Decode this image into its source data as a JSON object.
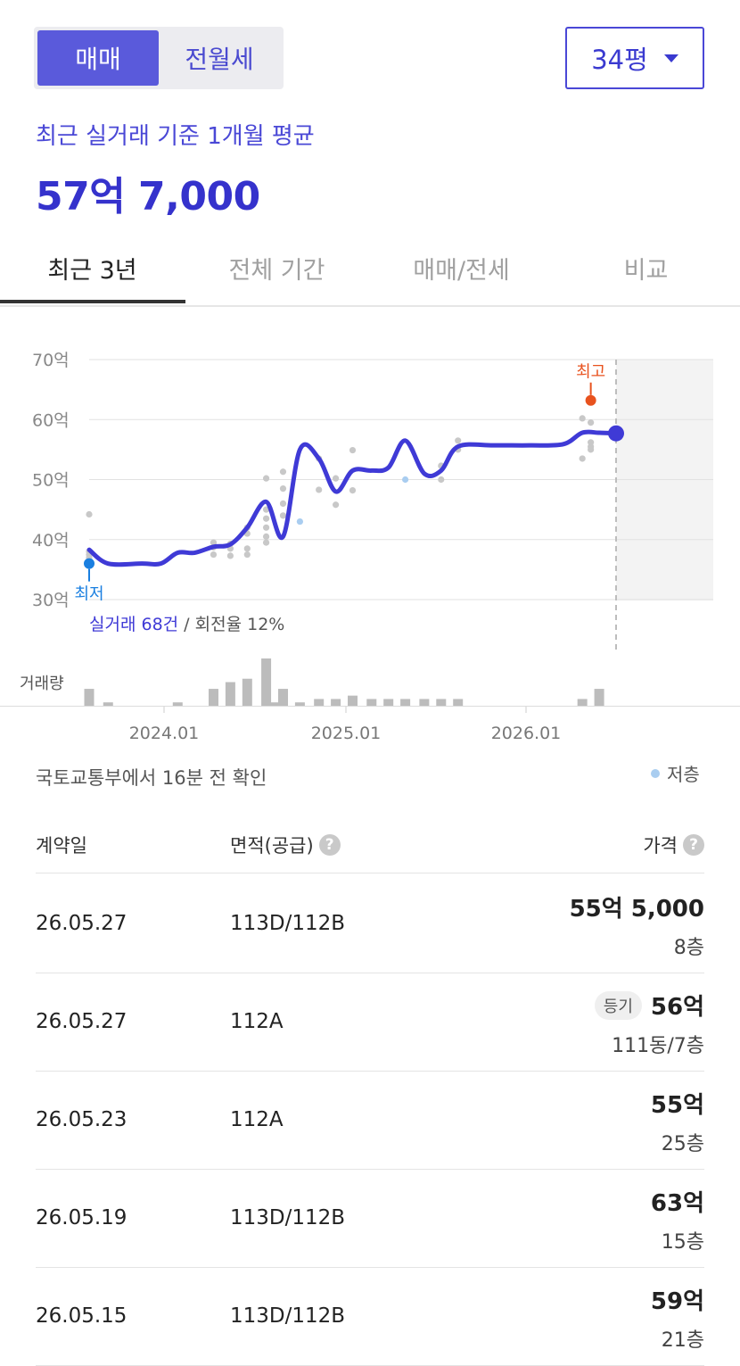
{
  "tradeTabs": [
    "매매",
    "전월세"
  ],
  "sizeSelect": "34평",
  "avgLabel": "최근 실거래 기준 1개월 평균",
  "avgValue": "57억 7,000",
  "periodTabs": [
    "최근 3년",
    "전체 기간",
    "매매/전세",
    "비교"
  ],
  "chart_data": {
    "type": "line",
    "yTickLabels": [
      "70억",
      "60억",
      "50억",
      "40억",
      "30억"
    ],
    "ylim": [
      30,
      70
    ],
    "xTickLabels": [
      "2024.01",
      "2025.01",
      "2026.01"
    ],
    "trend": [
      {
        "x": 2023.58,
        "y": 38.3
      },
      {
        "x": 2023.67,
        "y": 36.0
      },
      {
        "x": 2023.83,
        "y": 36.0
      },
      {
        "x": 2023.92,
        "y": 36.0
      },
      {
        "x": 2024.0,
        "y": 37.8
      },
      {
        "x": 2024.08,
        "y": 37.8
      },
      {
        "x": 2024.17,
        "y": 38.8
      },
      {
        "x": 2024.25,
        "y": 39.2
      },
      {
        "x": 2024.33,
        "y": 42.0
      },
      {
        "x": 2024.42,
        "y": 46.3
      },
      {
        "x": 2024.5,
        "y": 40.5
      },
      {
        "x": 2024.58,
        "y": 55.0
      },
      {
        "x": 2024.67,
        "y": 53.5
      },
      {
        "x": 2024.75,
        "y": 48.0
      },
      {
        "x": 2024.83,
        "y": 51.5
      },
      {
        "x": 2024.92,
        "y": 51.5
      },
      {
        "x": 2025.0,
        "y": 52.0
      },
      {
        "x": 2025.08,
        "y": 56.5
      },
      {
        "x": 2025.17,
        "y": 51.0
      },
      {
        "x": 2025.25,
        "y": 51.5
      },
      {
        "x": 2025.33,
        "y": 55.5
      },
      {
        "x": 2025.5,
        "y": 55.7
      },
      {
        "x": 2025.67,
        "y": 55.7
      },
      {
        "x": 2025.83,
        "y": 55.9
      },
      {
        "x": 2025.92,
        "y": 57.8
      },
      {
        "x": 2026.0,
        "y": 57.8
      },
      {
        "x": 2026.08,
        "y": 57.7
      }
    ],
    "scatter": [
      {
        "x": 2023.58,
        "y": 44.2
      },
      {
        "x": 2023.58,
        "y": 38
      },
      {
        "x": 2023.58,
        "y": 37.5
      },
      {
        "x": 2023.58,
        "y": 37
      },
      {
        "x": 2024.17,
        "y": 39.5
      },
      {
        "x": 2024.17,
        "y": 38.7
      },
      {
        "x": 2024.17,
        "y": 37.5
      },
      {
        "x": 2024.25,
        "y": 39.3
      },
      {
        "x": 2024.25,
        "y": 38.5
      },
      {
        "x": 2024.25,
        "y": 37.3
      },
      {
        "x": 2024.33,
        "y": 42
      },
      {
        "x": 2024.33,
        "y": 41
      },
      {
        "x": 2024.33,
        "y": 38.5
      },
      {
        "x": 2024.33,
        "y": 37.5
      },
      {
        "x": 2024.42,
        "y": 50.2
      },
      {
        "x": 2024.42,
        "y": 45
      },
      {
        "x": 2024.42,
        "y": 43.5
      },
      {
        "x": 2024.42,
        "y": 42
      },
      {
        "x": 2024.42,
        "y": 40.5
      },
      {
        "x": 2024.42,
        "y": 39.5
      },
      {
        "x": 2024.5,
        "y": 51.3
      },
      {
        "x": 2024.5,
        "y": 48.5
      },
      {
        "x": 2024.5,
        "y": 46
      },
      {
        "x": 2024.5,
        "y": 44
      },
      {
        "x": 2024.67,
        "y": 53.5
      },
      {
        "x": 2024.67,
        "y": 48.3
      },
      {
        "x": 2024.75,
        "y": 50.2
      },
      {
        "x": 2024.75,
        "y": 45.8
      },
      {
        "x": 2024.83,
        "y": 54.9
      },
      {
        "x": 2024.83,
        "y": 48.2
      },
      {
        "x": 2025.25,
        "y": 52.3
      },
      {
        "x": 2025.25,
        "y": 50
      },
      {
        "x": 2025.33,
        "y": 56.5
      },
      {
        "x": 2025.33,
        "y": 55
      },
      {
        "x": 2025.92,
        "y": 60.2
      },
      {
        "x": 2025.92,
        "y": 53.5
      },
      {
        "x": 2025.96,
        "y": 59.5
      },
      {
        "x": 2025.96,
        "y": 56.2
      },
      {
        "x": 2025.96,
        "y": 55.5
      },
      {
        "x": 2025.96,
        "y": 55
      }
    ],
    "lowFloorPoints": [
      {
        "x": 2024.58,
        "y": 43.0
      },
      {
        "x": 2025.08,
        "y": 50.0
      }
    ],
    "lowestLabel": "최저",
    "lowestPoint": {
      "x": 2023.58,
      "y": 36.0
    },
    "highestLabel": "최고",
    "highestPoint": {
      "x": 2025.96,
      "y": 63.2
    },
    "currentPoint": {
      "x": 2026.08,
      "y": 57.7
    },
    "dealCountHighlight": "실거래 68건",
    "turnover": " / 회전율 12%",
    "volumeLabel": "거래량",
    "volume": [
      {
        "x": 2023.58,
        "v": 5
      },
      {
        "x": 2023.67,
        "v": 1
      },
      {
        "x": 2024.0,
        "v": 1
      },
      {
        "x": 2024.17,
        "v": 5
      },
      {
        "x": 2024.25,
        "v": 7
      },
      {
        "x": 2024.33,
        "v": 8
      },
      {
        "x": 2024.42,
        "v": 14
      },
      {
        "x": 2024.46,
        "v": 1
      },
      {
        "x": 2024.5,
        "v": 5
      },
      {
        "x": 2024.58,
        "v": 1
      },
      {
        "x": 2024.67,
        "v": 2
      },
      {
        "x": 2024.75,
        "v": 2
      },
      {
        "x": 2024.83,
        "v": 3
      },
      {
        "x": 2024.92,
        "v": 2
      },
      {
        "x": 2025.0,
        "v": 2
      },
      {
        "x": 2025.08,
        "v": 2
      },
      {
        "x": 2025.17,
        "v": 2
      },
      {
        "x": 2025.25,
        "v": 2
      },
      {
        "x": 2025.33,
        "v": 2
      },
      {
        "x": 2025.92,
        "v": 2
      },
      {
        "x": 2026.0,
        "v": 5
      }
    ]
  },
  "updated": "국토교통부에서 16분 전 확인",
  "legendLowFloor": "저층",
  "tableHeaders": {
    "date": "계약일",
    "area": "면적(공급)",
    "price": "가격"
  },
  "rows": [
    {
      "date": "26.05.27",
      "area": "113D/112B",
      "price": "55억 5,000",
      "floor": "8층",
      "badge": ""
    },
    {
      "date": "26.05.27",
      "area": "112A",
      "price": "56억",
      "floor": "111동/7층",
      "badge": "등기"
    },
    {
      "date": "26.05.23",
      "area": "112A",
      "price": "55억",
      "floor": "25층",
      "badge": ""
    },
    {
      "date": "26.05.19",
      "area": "113D/112B",
      "price": "63억",
      "floor": "15층",
      "badge": ""
    },
    {
      "date": "26.05.15",
      "area": "113D/112B",
      "price": "59억",
      "floor": "21층",
      "badge": ""
    }
  ]
}
